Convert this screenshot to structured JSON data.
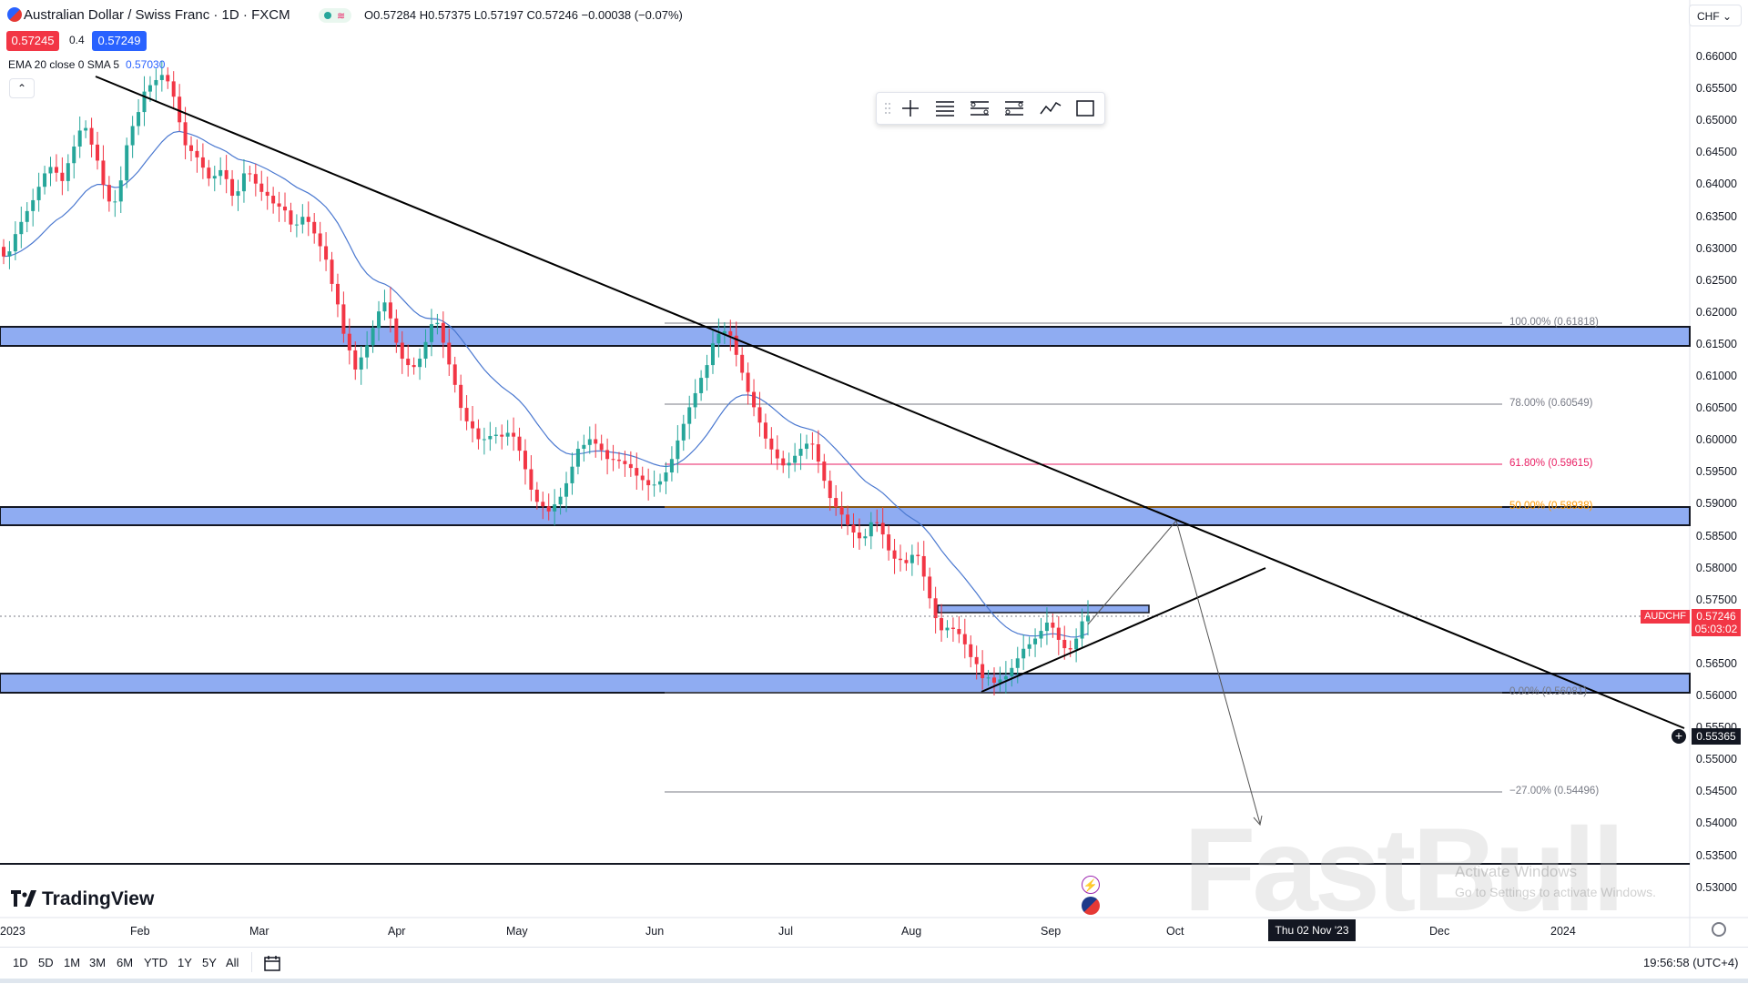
{
  "header": {
    "title": "Australian Dollar / Swiss Franc · 1D · FXCM",
    "ohlc": "O0.57284 H0.57375 L0.57197 C0.57246 −0.00038 (−0.07%)",
    "sell_price": "0.57245",
    "spread": "0.4",
    "buy_price": "0.57249",
    "indicator_label": "EMA 20 close 0 SMA 5",
    "indicator_value": "0.57030",
    "collapse_glyph": "⌃"
  },
  "currency_selector": {
    "label": "CHF ⌄"
  },
  "drawing_toolbar": {
    "tools": [
      "crosshair-icon",
      "lines-icon",
      "fib-levels-icon",
      "parallel-levels-icon",
      "trend-icon",
      "rectangle-icon"
    ]
  },
  "price_axis": {
    "labels": [
      "0.66000",
      "0.65500",
      "0.65000",
      "0.64500",
      "0.64000",
      "0.63500",
      "0.63000",
      "0.62500",
      "0.62000",
      "0.61500",
      "0.61000",
      "0.60500",
      "0.60000",
      "0.59500",
      "0.59000",
      "0.58500",
      "0.58000",
      "0.57500",
      "0.57000",
      "0.56500",
      "0.56000",
      "0.55500",
      "0.55000",
      "0.54500",
      "0.54000",
      "0.53500",
      "0.53000"
    ],
    "symbol_tag": "AUDCHF",
    "last_price": "0.57246",
    "countdown": "05:03:02",
    "cursor_price": "0.55365"
  },
  "fib_levels": {
    "l100": "100.00% (0.61818)",
    "l78": "78.00% (0.60549)",
    "l618": "61.80% (0.59615)",
    "l50": "50.00% (0.58938)",
    "l0": "0.00% (0.56081)",
    "lneg27": "−27.00% (0.54496)"
  },
  "time_axis": {
    "labels": [
      "2023",
      "Feb",
      "Mar",
      "Apr",
      "May",
      "Jun",
      "Jul",
      "Aug",
      "Sep",
      "Oct",
      "Dec",
      "2024"
    ],
    "cursor_date": "Thu 02 Nov '23"
  },
  "branding": {
    "logo_text": "TradingView",
    "watermark": "FastBull"
  },
  "os_notice": {
    "line1": "Activate Windows",
    "line2": "Go to Settings to activate Windows."
  },
  "bottom_bar": {
    "ranges": [
      "1D",
      "5D",
      "1M",
      "3M",
      "6M",
      "YTD",
      "1Y",
      "5Y",
      "All"
    ],
    "clock": "19:56:58 (UTC+4)"
  },
  "colors": {
    "up": "#26a69a",
    "down": "#f23645",
    "zone": "#7b9df0",
    "ema": "#4a78d0",
    "fib618": "#e91e63",
    "fib50": "#ff9800"
  },
  "chart_data": {
    "type": "candlestick",
    "symbol": "AUDCHF",
    "timeframe": "1D",
    "ylim": [
      0.528,
      0.665
    ],
    "closes": [
      0.6287,
      0.6295,
      0.6322,
      0.6341,
      0.6358,
      0.6375,
      0.6396,
      0.6417,
      0.6427,
      0.6418,
      0.6405,
      0.6433,
      0.6459,
      0.6484,
      0.6488,
      0.6462,
      0.6437,
      0.6399,
      0.6373,
      0.6373,
      0.6406,
      0.6461,
      0.6491,
      0.6513,
      0.6545,
      0.6555,
      0.6563,
      0.6571,
      0.6561,
      0.6537,
      0.6497,
      0.6461,
      0.6452,
      0.6442,
      0.6426,
      0.6409,
      0.6413,
      0.6422,
      0.6408,
      0.6382,
      0.6389,
      0.6417,
      0.6416,
      0.6401,
      0.6388,
      0.6382,
      0.637,
      0.6365,
      0.6359,
      0.6337,
      0.6337,
      0.6349,
      0.6341,
      0.6323,
      0.6303,
      0.6282,
      0.6244,
      0.6212,
      0.6166,
      0.614,
      0.611,
      0.6129,
      0.6148,
      0.6175,
      0.6201,
      0.6215,
      0.619,
      0.6152,
      0.6127,
      0.6117,
      0.6114,
      0.6127,
      0.6153,
      0.6181,
      0.6183,
      0.6152,
      0.6118,
      0.6086,
      0.605,
      0.6029,
      0.6018,
      0.6001,
      0.6001,
      0.6006,
      0.6008,
      0.6005,
      0.6011,
      0.6005,
      0.5983,
      0.5954,
      0.5922,
      0.5903,
      0.5896,
      0.5888,
      0.5899,
      0.5911,
      0.5932,
      0.5958,
      0.5986,
      0.5992,
      0.6001,
      0.5994,
      0.5984,
      0.597,
      0.5969,
      0.5967,
      0.5962,
      0.5956,
      0.5944,
      0.5937,
      0.5929,
      0.593,
      0.5935,
      0.5949,
      0.597,
      0.5999,
      0.6025,
      0.6051,
      0.6073,
      0.6097,
      0.6117,
      0.6151,
      0.6166,
      0.617,
      0.6163,
      0.6133,
      0.6105,
      0.6075,
      0.6051,
      0.6027,
      0.6002,
      0.5985,
      0.5971,
      0.596,
      0.5964,
      0.5975,
      0.5986,
      0.5994,
      0.5993,
      0.5966,
      0.5936,
      0.5909,
      0.5895,
      0.5883,
      0.5867,
      0.5855,
      0.5846,
      0.5849,
      0.5871,
      0.587,
      0.5852,
      0.5827,
      0.5814,
      0.5812,
      0.5807,
      0.582,
      0.5818,
      0.5786,
      0.5752,
      0.5721,
      0.5702,
      0.5706,
      0.5704,
      0.5696,
      0.568,
      0.566,
      0.5649,
      0.5627,
      0.5628,
      0.562,
      0.5625,
      0.563,
      0.5643,
      0.5658,
      0.5673,
      0.568,
      0.5689,
      0.5701,
      0.5714,
      0.5706,
      0.5687,
      0.5674,
      0.5672,
      0.5689,
      0.5716,
      0.5725
    ]
  }
}
